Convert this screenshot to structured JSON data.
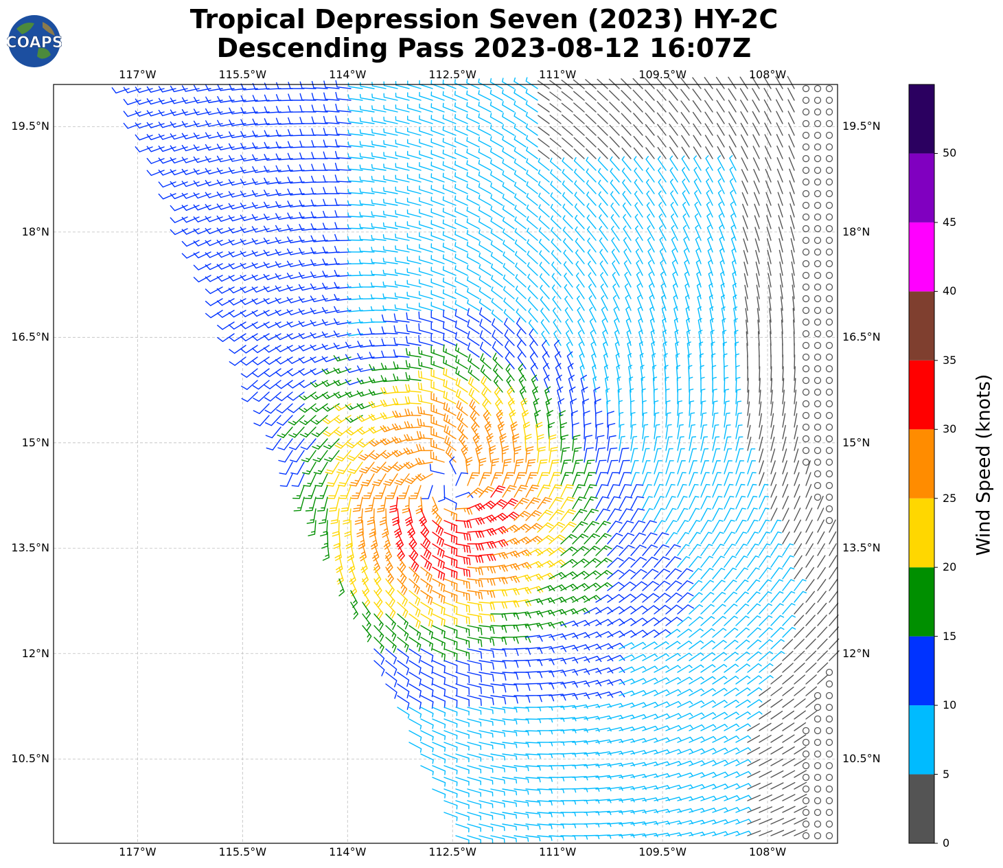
{
  "header": {
    "title_line1": "Tropical Depression Seven (2023) HY-2C",
    "title_line2": "Descending Pass 2023-08-12 16:07Z",
    "logo_text": "COAPS"
  },
  "map": {
    "lon_ticks": [
      "117°W",
      "115.5°W",
      "114°W",
      "112.5°W",
      "111°W",
      "109.5°W",
      "108°W"
    ],
    "lat_ticks": [
      "19.5°N",
      "18°N",
      "16.5°N",
      "15°N",
      "13.5°N",
      "12°N",
      "10.5°N"
    ],
    "extent": {
      "lon_min": -118.2,
      "lon_max": -107.0,
      "lat_min": 9.3,
      "lat_max": 20.1
    },
    "storm_center": {
      "lon": -112.6,
      "lat": 14.4
    },
    "swath_corners_lonlat": [
      [
        -117.2,
        20.1
      ],
      [
        -107.0,
        20.1
      ],
      [
        -107.0,
        9.3
      ],
      [
        -112.5,
        9.3
      ]
    ],
    "gridlines": "dashed"
  },
  "colorbar": {
    "label": "Wind Speed (knots)",
    "ticks": [
      "0",
      "5",
      "10",
      "15",
      "20",
      "25",
      "30",
      "35",
      "40",
      "45",
      "50"
    ],
    "bins_knots": [
      [
        0,
        5
      ],
      [
        5,
        10
      ],
      [
        10,
        15
      ],
      [
        15,
        20
      ],
      [
        20,
        25
      ],
      [
        25,
        30
      ],
      [
        30,
        35
      ],
      [
        35,
        40
      ],
      [
        40,
        45
      ],
      [
        45,
        50
      ],
      [
        50,
        55
      ]
    ],
    "colors": [
      "#545454",
      "#00bbff",
      "#0033ff",
      "#008f00",
      "#ffd700",
      "#ff8c00",
      "#ff0000",
      "#7f3f2f",
      "#ff00ff",
      "#8000c0",
      "#2b0060"
    ]
  }
}
